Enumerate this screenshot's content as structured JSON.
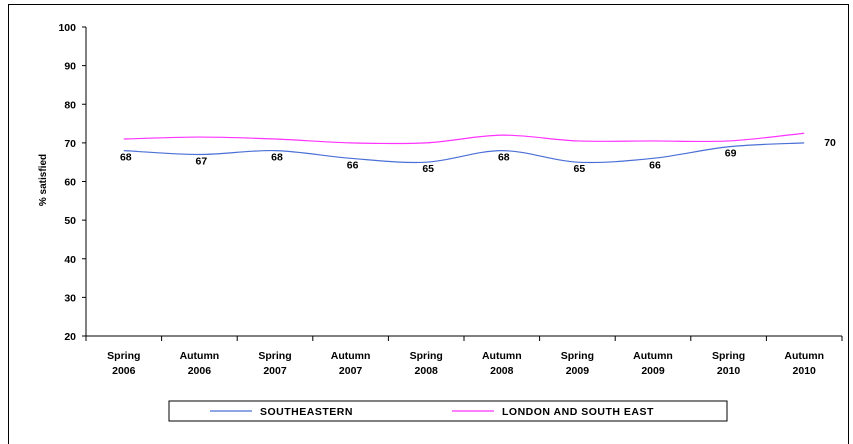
{
  "chart_data": {
    "type": "line",
    "title": "",
    "xlabel": "",
    "ylabel": "% satisfied",
    "ylim": [
      20,
      100
    ],
    "y_ticks": [
      20,
      30,
      40,
      50,
      60,
      70,
      80,
      90,
      100
    ],
    "grid": false,
    "legend_position": "bottom",
    "categories": [
      [
        "Spring",
        "2006"
      ],
      [
        "Autumn",
        "2006"
      ],
      [
        "Spring",
        "2007"
      ],
      [
        "Autumn",
        "2007"
      ],
      [
        "Spring",
        "2008"
      ],
      [
        "Autumn",
        "2008"
      ],
      [
        "Spring",
        "2009"
      ],
      [
        "Autumn",
        "2009"
      ],
      [
        "Spring",
        "2010"
      ],
      [
        "Autumn",
        "2010"
      ]
    ],
    "series": [
      {
        "name": "SOUTHEASTERN",
        "color": "#4a6fd6",
        "values": [
          68,
          67,
          68,
          66,
          65,
          68,
          65,
          66,
          69,
          70
        ],
        "labeled": true
      },
      {
        "name": "LONDON AND SOUTH EAST",
        "color": "#ff33ff",
        "values": [
          71,
          71.5,
          71,
          70,
          70,
          72,
          70.5,
          70.5,
          70.5,
          72.5
        ],
        "labeled": false
      }
    ]
  }
}
